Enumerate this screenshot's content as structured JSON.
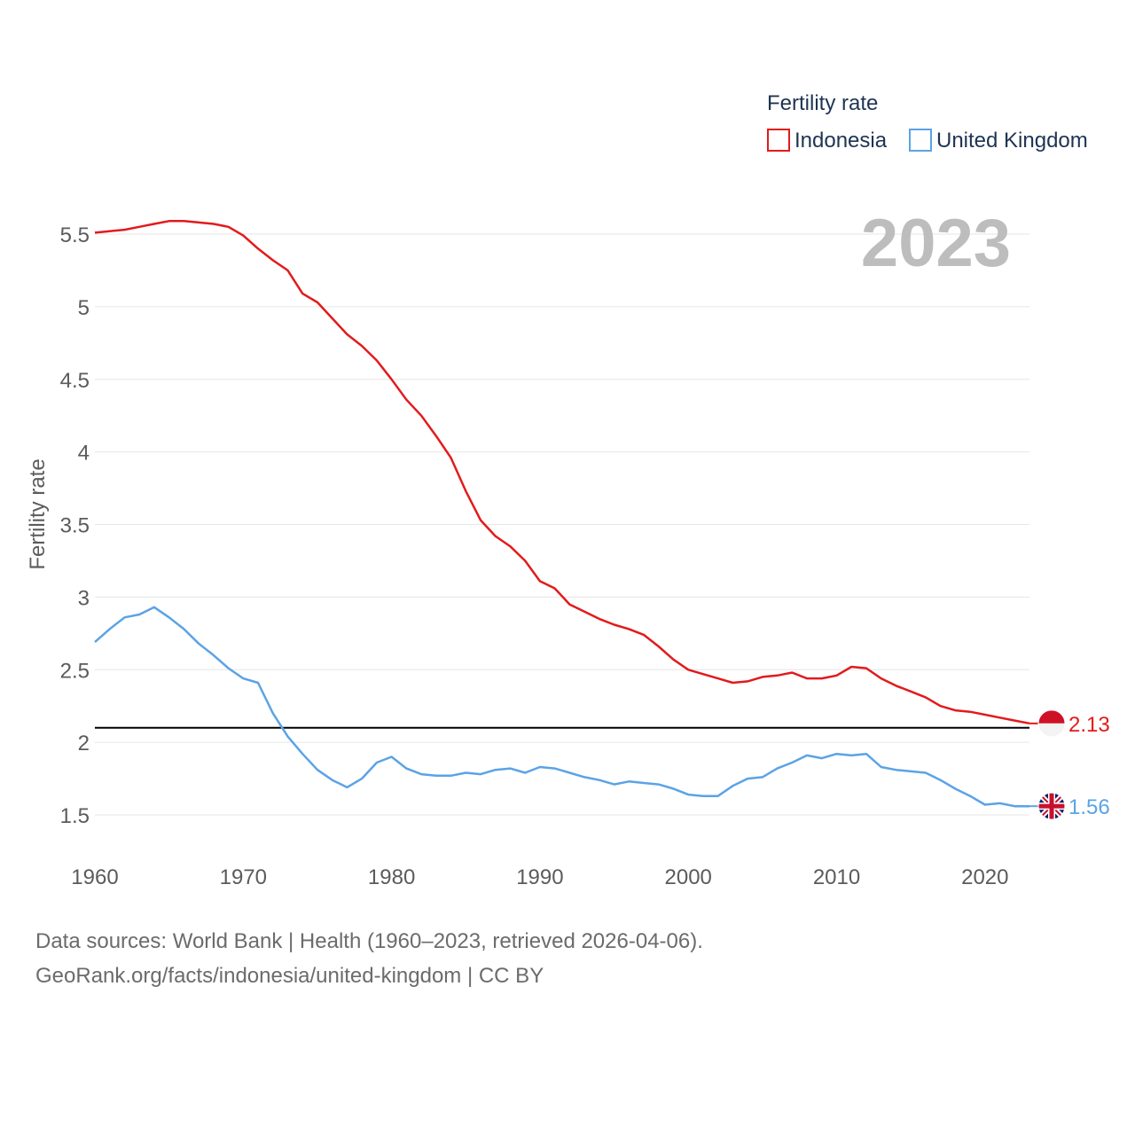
{
  "chart_data": {
    "type": "line",
    "legend_title": "Fertility rate",
    "ylabel": "Fertility rate",
    "xlabel": "",
    "current_year": "2023",
    "xlim": [
      1960,
      2023
    ],
    "ylim": [
      1.3,
      5.7
    ],
    "y_ticks": [
      1.5,
      2,
      2.5,
      3,
      3.5,
      4,
      4.5,
      5,
      5.5
    ],
    "y_tick_labels": [
      "1.5",
      "2",
      "2.5",
      "3",
      "3.5",
      "4",
      "4.5",
      "5",
      "5.5"
    ],
    "x_ticks": [
      1960,
      1970,
      1980,
      1990,
      2000,
      2010,
      2020
    ],
    "x_tick_labels": [
      "1960",
      "1970",
      "1980",
      "1990",
      "2000",
      "2010",
      "2020"
    ],
    "reference_line": {
      "y": 2.1,
      "color": "#000000"
    },
    "grid": true,
    "legend_position": "top-right",
    "x": [
      1960,
      1961,
      1962,
      1963,
      1964,
      1965,
      1966,
      1967,
      1968,
      1969,
      1970,
      1971,
      1972,
      1973,
      1974,
      1975,
      1976,
      1977,
      1978,
      1979,
      1980,
      1981,
      1982,
      1983,
      1984,
      1985,
      1986,
      1987,
      1988,
      1989,
      1990,
      1991,
      1992,
      1993,
      1994,
      1995,
      1996,
      1997,
      1998,
      1999,
      2000,
      2001,
      2002,
      2003,
      2004,
      2005,
      2006,
      2007,
      2008,
      2009,
      2010,
      2011,
      2012,
      2013,
      2014,
      2015,
      2016,
      2017,
      2018,
      2019,
      2020,
      2021,
      2022,
      2023
    ],
    "series": [
      {
        "name": "Indonesia",
        "color": "#e31a1c",
        "end_label": "2.13",
        "flag": "indonesia-flag-icon",
        "values": [
          5.51,
          5.52,
          5.53,
          5.55,
          5.57,
          5.59,
          5.59,
          5.58,
          5.57,
          5.55,
          5.49,
          5.4,
          5.32,
          5.25,
          5.09,
          5.03,
          4.92,
          4.81,
          4.73,
          4.63,
          4.5,
          4.36,
          4.25,
          4.11,
          3.96,
          3.73,
          3.53,
          3.42,
          3.35,
          3.25,
          3.11,
          3.06,
          2.95,
          2.9,
          2.85,
          2.81,
          2.78,
          2.74,
          2.66,
          2.57,
          2.5,
          2.47,
          2.44,
          2.41,
          2.42,
          2.45,
          2.46,
          2.48,
          2.44,
          2.44,
          2.46,
          2.52,
          2.51,
          2.44,
          2.39,
          2.35,
          2.31,
          2.25,
          2.22,
          2.21,
          2.19,
          2.17,
          2.15,
          2.13
        ]
      },
      {
        "name": "United Kingdom",
        "color": "#5ba3e6",
        "end_label": "1.56",
        "flag": "united-kingdom-flag-icon",
        "values": [
          2.69,
          2.78,
          2.86,
          2.88,
          2.93,
          2.86,
          2.78,
          2.68,
          2.6,
          2.51,
          2.44,
          2.41,
          2.2,
          2.04,
          1.92,
          1.81,
          1.74,
          1.69,
          1.75,
          1.86,
          1.9,
          1.82,
          1.78,
          1.77,
          1.77,
          1.79,
          1.78,
          1.81,
          1.82,
          1.79,
          1.83,
          1.82,
          1.79,
          1.76,
          1.74,
          1.71,
          1.73,
          1.72,
          1.71,
          1.68,
          1.64,
          1.63,
          1.63,
          1.7,
          1.75,
          1.76,
          1.82,
          1.86,
          1.91,
          1.89,
          1.92,
          1.91,
          1.92,
          1.83,
          1.81,
          1.8,
          1.79,
          1.74,
          1.68,
          1.63,
          1.57,
          1.58,
          1.56,
          1.56
        ]
      }
    ]
  },
  "footer": {
    "source_line": "Data sources: World Bank | Health (1960–2023, retrieved 2026-04-06).",
    "credit_line": "GeoRank.org/facts/indonesia/united-kingdom | CC BY"
  }
}
